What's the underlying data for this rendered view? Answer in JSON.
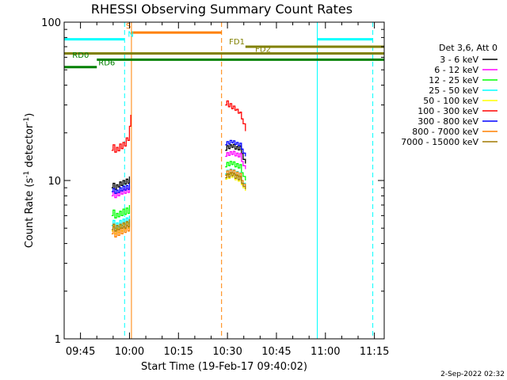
{
  "chart_data": {
    "type": "line",
    "title": "RHESSI Observing Summary Count Rates",
    "xlabel": "Start Time (19-Feb-17 09:40:02)",
    "ylabel_main": "Count Rate (s",
    "ylabel_sup1": "-1",
    "ylabel_mid": " detector",
    "ylabel_sup2": "-1",
    "ylabel_end": ")",
    "y_scale": "log",
    "ylim": [
      1,
      100
    ],
    "xlim_minutes": [
      0,
      98
    ],
    "x_ticks": [
      {
        "label": "09:45",
        "t": 5
      },
      {
        "label": "10:00",
        "t": 20
      },
      {
        "label": "10:15",
        "t": 35
      },
      {
        "label": "10:30",
        "t": 50
      },
      {
        "label": "10:45",
        "t": 65
      },
      {
        "label": "11:00",
        "t": 80
      },
      {
        "label": "11:15",
        "t": 95
      }
    ],
    "y_ticks": [
      {
        "label": "1",
        "v": 1
      },
      {
        "label": "10",
        "v": 10
      },
      {
        "label": "100",
        "v": 100
      }
    ],
    "legend_header": "Det 3,6, Att 0",
    "legend_position": "right",
    "series": [
      {
        "name": "3 - 6 keV",
        "color": "#000000",
        "segments": [
          [
            [
              14.5,
              9.0
            ],
            [
              15.0,
              9.6
            ],
            [
              15.5,
              8.8
            ],
            [
              16.0,
              9.4
            ],
            [
              16.5,
              9.1
            ],
            [
              17.0,
              9.8
            ],
            [
              17.5,
              9.3
            ],
            [
              18.0,
              10.0
            ],
            [
              18.5,
              9.5
            ],
            [
              19.0,
              10.2
            ],
            [
              19.5,
              9.6
            ],
            [
              20.0,
              10.6
            ]
          ],
          [
            [
              49.3,
              15.5
            ],
            [
              49.8,
              16.6
            ],
            [
              50.3,
              15.9
            ],
            [
              50.8,
              16.8
            ],
            [
              51.3,
              16.2
            ],
            [
              51.8,
              16.9
            ],
            [
              52.3,
              15.8
            ],
            [
              52.8,
              16.4
            ],
            [
              53.3,
              15.6
            ],
            [
              53.8,
              16.5
            ],
            [
              54.3,
              14.8
            ],
            [
              54.8,
              13.6
            ],
            [
              55.5,
              12.8
            ]
          ]
        ]
      },
      {
        "name": "6 - 12 keV",
        "color": "#ff00ff",
        "segments": [
          [
            [
              14.5,
              8.0
            ],
            [
              15.0,
              8.5
            ],
            [
              15.5,
              7.8
            ],
            [
              16.0,
              8.3
            ],
            [
              16.5,
              8.0
            ],
            [
              17.0,
              8.6
            ],
            [
              17.5,
              8.2
            ],
            [
              18.0,
              8.8
            ],
            [
              18.5,
              8.3
            ],
            [
              19.0,
              8.9
            ],
            [
              19.5,
              8.4
            ],
            [
              20.0,
              9.2
            ]
          ],
          [
            [
              49.3,
              14.2
            ],
            [
              49.8,
              15.0
            ],
            [
              50.3,
              14.4
            ],
            [
              50.8,
              15.2
            ],
            [
              51.3,
              14.6
            ],
            [
              51.8,
              15.3
            ],
            [
              52.3,
              14.3
            ],
            [
              52.8,
              14.9
            ],
            [
              53.3,
              14.1
            ],
            [
              53.8,
              14.8
            ],
            [
              54.3,
              13.2
            ],
            [
              54.8,
              12.4
            ],
            [
              55.5,
              11.8
            ]
          ]
        ]
      },
      {
        "name": "12 - 25 keV",
        "color": "#00ff00",
        "segments": [
          [
            [
              14.5,
              6.0
            ],
            [
              15.0,
              6.5
            ],
            [
              15.5,
              5.8
            ],
            [
              16.0,
              6.2
            ],
            [
              16.5,
              5.9
            ],
            [
              17.0,
              6.4
            ],
            [
              17.5,
              6.0
            ],
            [
              18.0,
              6.6
            ],
            [
              18.5,
              6.1
            ],
            [
              19.0,
              6.7
            ],
            [
              19.5,
              6.2
            ],
            [
              20.0,
              7.0
            ]
          ],
          [
            [
              49.3,
              12.2
            ],
            [
              49.8,
              13.0
            ],
            [
              50.3,
              12.4
            ],
            [
              50.8,
              13.2
            ],
            [
              51.3,
              12.6
            ],
            [
              51.8,
              13.1
            ],
            [
              52.3,
              12.2
            ],
            [
              52.8,
              12.8
            ],
            [
              53.3,
              12.0
            ],
            [
              53.8,
              12.6
            ],
            [
              54.3,
              11.2
            ],
            [
              54.8,
              10.6
            ],
            [
              55.5,
              10.0
            ]
          ]
        ]
      },
      {
        "name": "25 - 50 keV",
        "color": "#00ffff",
        "segments": [
          [
            [
              14.5,
              5.2
            ],
            [
              15.0,
              5.6
            ],
            [
              15.5,
              5.0
            ],
            [
              16.0,
              5.4
            ],
            [
              16.5,
              5.1
            ],
            [
              17.0,
              5.6
            ],
            [
              17.5,
              5.2
            ],
            [
              18.0,
              5.7
            ],
            [
              18.5,
              5.3
            ],
            [
              19.0,
              5.8
            ],
            [
              19.5,
              5.4
            ],
            [
              20.0,
              6.0
            ]
          ],
          [
            [
              49.3,
              11.0
            ],
            [
              49.8,
              11.6
            ],
            [
              50.3,
              11.1
            ],
            [
              50.8,
              11.8
            ],
            [
              51.3,
              11.3
            ],
            [
              51.8,
              11.7
            ],
            [
              52.3,
              10.9
            ],
            [
              52.8,
              11.4
            ],
            [
              53.3,
              10.7
            ],
            [
              53.8,
              11.2
            ],
            [
              54.3,
              10.0
            ],
            [
              54.8,
              9.6
            ],
            [
              55.5,
              9.2
            ]
          ]
        ]
      },
      {
        "name": "50 - 100 keV",
        "color": "#ffff00",
        "segments": [
          [
            [
              14.5,
              4.8
            ],
            [
              15.0,
              5.2
            ],
            [
              15.5,
              4.6
            ],
            [
              16.0,
              5.0
            ],
            [
              16.5,
              4.7
            ],
            [
              17.0,
              5.2
            ],
            [
              17.5,
              4.8
            ],
            [
              18.0,
              5.3
            ],
            [
              18.5,
              4.9
            ],
            [
              19.0,
              5.4
            ],
            [
              19.5,
              5.0
            ],
            [
              20.0,
              5.6
            ]
          ],
          [
            [
              49.3,
              10.2
            ],
            [
              49.8,
              10.8
            ],
            [
              50.3,
              10.3
            ],
            [
              50.8,
              11.0
            ],
            [
              51.3,
              10.5
            ],
            [
              51.8,
              10.9
            ],
            [
              52.3,
              10.1
            ],
            [
              52.8,
              10.6
            ],
            [
              53.3,
              9.9
            ],
            [
              53.8,
              10.4
            ],
            [
              54.3,
              9.4
            ],
            [
              54.8,
              9.0
            ],
            [
              55.5,
              8.6
            ]
          ]
        ]
      },
      {
        "name": "100 - 300 keV",
        "color": "#ff0000",
        "segments": [
          [
            [
              14.5,
              15.5
            ],
            [
              15.0,
              16.8
            ],
            [
              15.5,
              15.1
            ],
            [
              16.0,
              16.2
            ],
            [
              16.5,
              15.4
            ],
            [
              17.0,
              17.0
            ],
            [
              17.5,
              15.9
            ],
            [
              18.0,
              17.4
            ],
            [
              18.5,
              16.5
            ],
            [
              19.0,
              18.6
            ],
            [
              19.5,
              17.9
            ],
            [
              20.0,
              22.0
            ],
            [
              20.4,
              26.0
            ]
          ],
          [
            [
              49.3,
              30.0
            ],
            [
              49.8,
              31.8
            ],
            [
              50.3,
              29.2
            ],
            [
              50.8,
              30.6
            ],
            [
              51.3,
              28.4
            ],
            [
              51.8,
              29.5
            ],
            [
              52.3,
              27.8
            ],
            [
              52.8,
              28.2
            ],
            [
              53.3,
              26.6
            ],
            [
              53.8,
              27.0
            ],
            [
              54.3,
              24.5
            ],
            [
              54.8,
              22.8
            ],
            [
              55.5,
              20.5
            ]
          ]
        ]
      },
      {
        "name": "300 - 800 keV",
        "color": "#0000ff",
        "segments": [
          [
            [
              14.5,
              8.5
            ],
            [
              15.0,
              8.9
            ],
            [
              15.5,
              8.3
            ],
            [
              16.0,
              8.7
            ],
            [
              16.5,
              8.4
            ],
            [
              17.0,
              9.0
            ],
            [
              17.5,
              8.6
            ],
            [
              18.0,
              9.2
            ],
            [
              18.5,
              8.7
            ],
            [
              19.0,
              9.3
            ],
            [
              19.5,
              8.8
            ],
            [
              20.0,
              9.6
            ]
          ],
          [
            [
              49.3,
              16.8
            ],
            [
              49.8,
              17.6
            ],
            [
              50.3,
              17.0
            ],
            [
              50.8,
              17.9
            ],
            [
              51.3,
              17.3
            ],
            [
              51.8,
              17.8
            ],
            [
              52.3,
              16.9
            ],
            [
              52.8,
              17.4
            ],
            [
              53.3,
              16.6
            ],
            [
              53.8,
              17.2
            ],
            [
              54.3,
              15.8
            ],
            [
              54.8,
              14.9
            ],
            [
              55.5,
              14.2
            ]
          ]
        ]
      },
      {
        "name": "800 - 7000 keV",
        "color": "#ff8000",
        "segments": [
          [
            [
              14.5,
              4.6
            ],
            [
              15.0,
              5.1
            ],
            [
              15.5,
              4.4
            ],
            [
              16.0,
              4.9
            ],
            [
              16.5,
              4.5
            ],
            [
              17.0,
              5.0
            ],
            [
              17.5,
              4.6
            ],
            [
              18.0,
              5.1
            ],
            [
              18.5,
              4.7
            ],
            [
              19.0,
              5.2
            ],
            [
              19.5,
              4.8
            ],
            [
              20.0,
              5.4
            ]
          ],
          [
            [
              49.3,
              10.8
            ],
            [
              49.8,
              11.5
            ],
            [
              50.3,
              10.9
            ],
            [
              50.8,
              11.7
            ],
            [
              51.3,
              11.2
            ],
            [
              51.8,
              11.6
            ],
            [
              52.3,
              10.8
            ],
            [
              52.8,
              11.3
            ],
            [
              53.3,
              10.6
            ],
            [
              53.8,
              11.1
            ],
            [
              54.3,
              10.0
            ],
            [
              54.8,
              9.5
            ],
            [
              55.5,
              9.1
            ]
          ]
        ]
      },
      {
        "name": "7000 - 15000 keV",
        "color": "#a07800",
        "segments": [
          [
            [
              14.5,
              4.9
            ],
            [
              15.0,
              5.3
            ],
            [
              15.5,
              4.8
            ],
            [
              16.0,
              5.2
            ],
            [
              16.5,
              4.9
            ],
            [
              17.0,
              5.3
            ],
            [
              17.5,
              5.0
            ],
            [
              18.0,
              5.4
            ],
            [
              18.5,
              5.0
            ],
            [
              19.0,
              5.5
            ],
            [
              19.5,
              5.1
            ],
            [
              20.0,
              5.7
            ]
          ],
          [
            [
              49.3,
              10.4
            ],
            [
              49.8,
              11.0
            ],
            [
              50.3,
              10.5
            ],
            [
              50.8,
              11.2
            ],
            [
              51.3,
              10.7
            ],
            [
              51.8,
              11.1
            ],
            [
              52.3,
              10.3
            ],
            [
              52.8,
              10.8
            ],
            [
              53.3,
              10.1
            ],
            [
              53.8,
              10.6
            ],
            [
              54.3,
              9.6
            ],
            [
              54.8,
              9.2
            ],
            [
              55.5,
              8.8
            ]
          ]
        ]
      }
    ],
    "vertical_lines": [
      {
        "t": 0.0,
        "color": "#00ffff",
        "style": "solid"
      },
      {
        "t": 18.5,
        "color": "#00ffff",
        "style": "dashed"
      },
      {
        "t": 20.6,
        "color": "#ff8000",
        "style": "solid"
      },
      {
        "t": 48.2,
        "color": "#ff8000",
        "style": "dashed"
      },
      {
        "t": 77.5,
        "color": "#00ffff",
        "style": "solid"
      },
      {
        "t": 94.5,
        "color": "#00ffff",
        "style": "dashed"
      }
    ],
    "flag_bars": [
      {
        "t0": 0.0,
        "t1": 18.5,
        "value": 78,
        "color": "#00ffff"
      },
      {
        "t0": 77.5,
        "t1": 94.5,
        "value": 78,
        "color": "#00ffff"
      },
      {
        "t0": 20.6,
        "t1": 48.2,
        "value": 86,
        "color": "#ff8000"
      },
      {
        "t0": 55.5,
        "t1": 98.0,
        "value": 70,
        "color": "#808000"
      },
      {
        "t0": 0.0,
        "t1": 98.0,
        "value": 63.5,
        "color": "#808000"
      },
      {
        "t0": 10.0,
        "t1": 98.0,
        "value": 58,
        "color": "#008000"
      },
      {
        "t0": 0.0,
        "t1": 10.0,
        "value": 52,
        "color": "#008000"
      }
    ],
    "flag_labels": [
      {
        "text": "S",
        "t": 18.9,
        "value": 91,
        "color": "#ff8000"
      },
      {
        "text": "N",
        "t": 19.5,
        "value": 81,
        "color": "#00ffff"
      },
      {
        "text": "FD1",
        "t": 50.5,
        "value": 72.5,
        "color": "#808000"
      },
      {
        "text": "FD2",
        "t": 58.5,
        "value": 65,
        "color": "#808000"
      },
      {
        "text": "RD0",
        "t": 2.5,
        "value": 59.5,
        "color": "#008000"
      },
      {
        "text": "RD6",
        "t": 10.5,
        "value": 53.5,
        "color": "#008000"
      }
    ],
    "timestamp": "2-Sep-2022 02:32"
  }
}
